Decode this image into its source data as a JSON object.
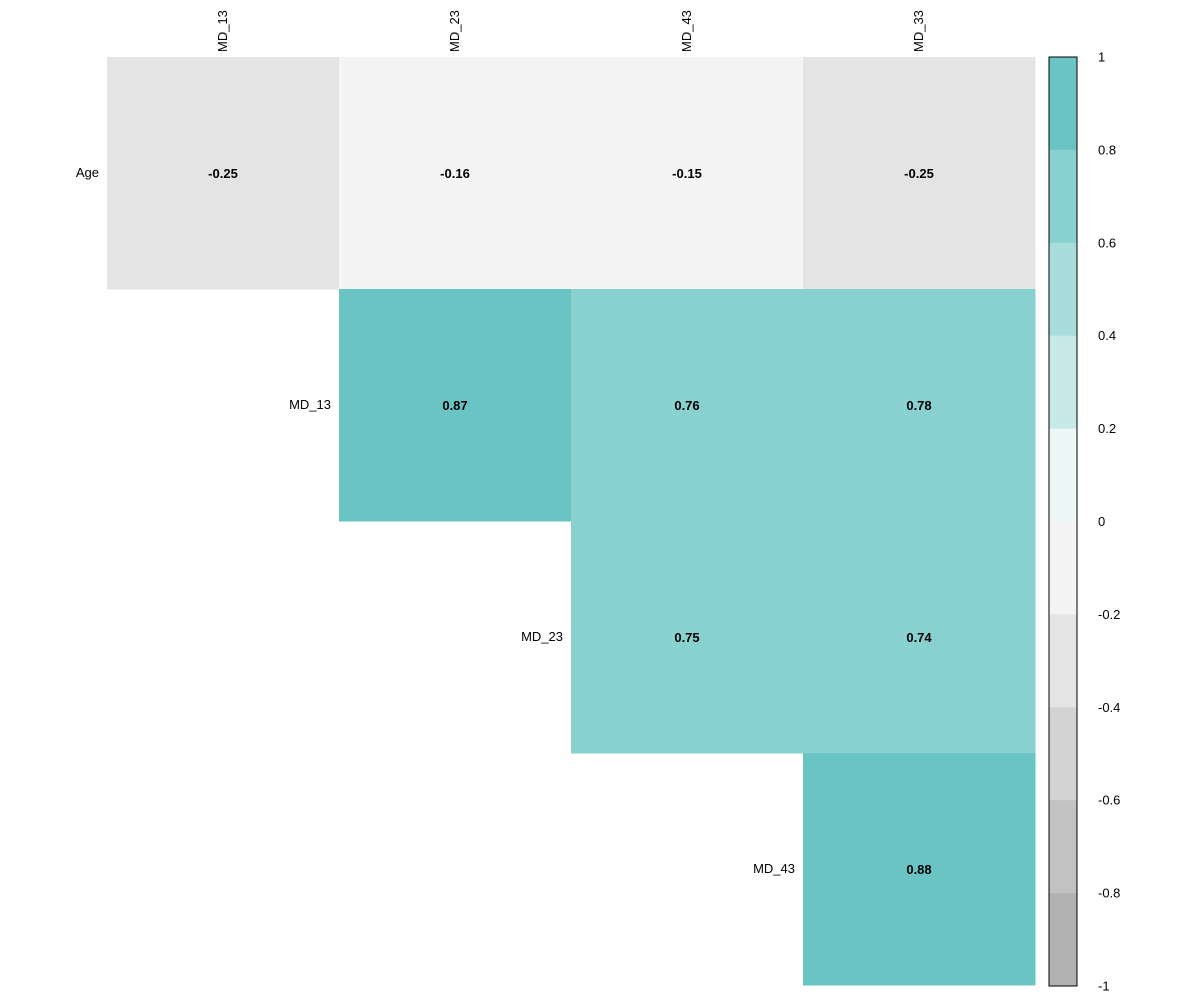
{
  "chart_data": {
    "type": "heatmap",
    "title": "",
    "columns": [
      "MD_13",
      "MD_23",
      "MD_43",
      "MD_33"
    ],
    "rows": [
      "Age",
      "MD_13",
      "MD_23",
      "MD_43"
    ],
    "values": [
      [
        -0.25,
        -0.16,
        -0.15,
        -0.25
      ],
      [
        null,
        0.87,
        0.76,
        0.78
      ],
      [
        null,
        null,
        0.75,
        0.74
      ],
      [
        null,
        null,
        null,
        0.88
      ]
    ],
    "value_labels": [
      [
        "-0.25",
        "-0.16",
        "-0.15",
        "-0.25"
      ],
      [
        null,
        "0.87",
        "0.76",
        "0.78"
      ],
      [
        null,
        null,
        "0.75",
        "0.74"
      ],
      [
        null,
        null,
        null,
        "0.88"
      ]
    ],
    "color_scale": {
      "range": [
        -1,
        1
      ],
      "ticks": [
        "1",
        "0.8",
        "0.6",
        "0.4",
        "0.2",
        "0",
        "-0.2",
        "-0.4",
        "-0.6",
        "-0.8",
        "-1"
      ],
      "bins": [
        {
          "from": 0.8,
          "to": 1.0,
          "color": "#6AC4C4"
        },
        {
          "from": 0.6,
          "to": 0.8,
          "color": "#89D1D0"
        },
        {
          "from": 0.4,
          "to": 0.6,
          "color": "#A8DDDC"
        },
        {
          "from": 0.2,
          "to": 0.4,
          "color": "#C8E9E8"
        },
        {
          "from": 0.0,
          "to": 0.2,
          "color": "#EDF7F6"
        },
        {
          "from": -0.2,
          "to": 0.0,
          "color": "#F4F4F4"
        },
        {
          "from": -0.4,
          "to": -0.2,
          "color": "#E4E4E4"
        },
        {
          "from": -0.6,
          "to": -0.4,
          "color": "#D3D3D3"
        },
        {
          "from": -0.8,
          "to": -0.6,
          "color": "#C2C2C2"
        },
        {
          "from": -1.0,
          "to": -0.8,
          "color": "#B2B2B2"
        }
      ],
      "legend_position": "right"
    },
    "column_label_position": "top",
    "column_label_rotation": "vertical",
    "row_label_position": "left-of-diagonal",
    "grid": false
  }
}
